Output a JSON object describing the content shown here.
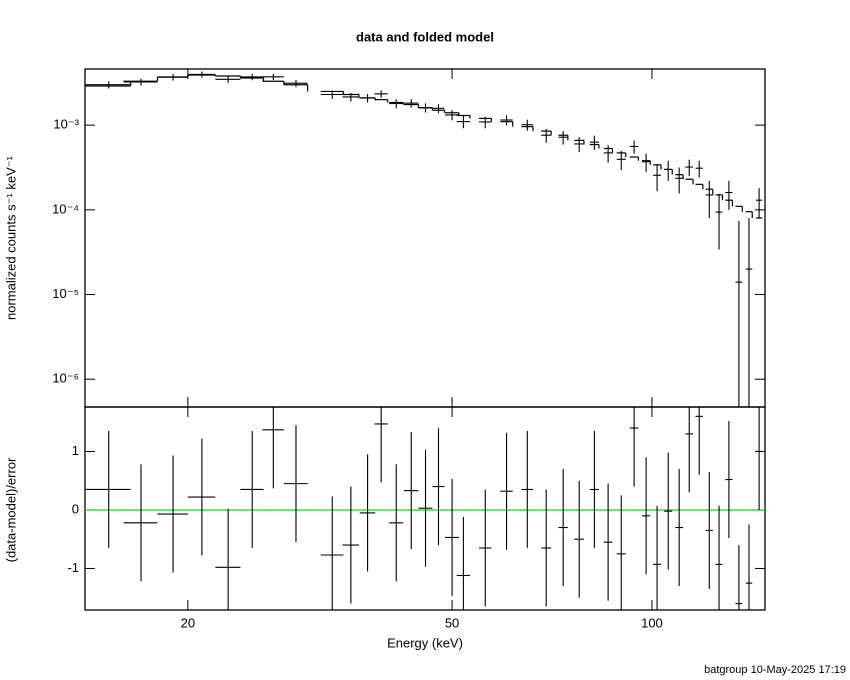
{
  "chart_data": {
    "type": "spectrum",
    "title": "data and folded model",
    "x_label": "Energy (keV)",
    "footer": "batgroup 10-May-2025 17:19",
    "xscale": "log",
    "xlim": [
      14,
      148
    ],
    "xticks": [
      20,
      50,
      100
    ],
    "energy": [
      15.2,
      17.0,
      19.0,
      21.0,
      23.0,
      25.0,
      26.9,
      29.1,
      33.0,
      35.2,
      37.3,
      39.1,
      41.2,
      43.4,
      45.6,
      47.7,
      50.0,
      52.0,
      56.1,
      60.4,
      64.9,
      69.3,
      73.5,
      77.7,
      81.9,
      85.9,
      89.9,
      94.0,
      98.0,
      101.8,
      105.8,
      109.9,
      113.8,
      117.8,
      122.0,
      126.2,
      130.6,
      135.2,
      140.0,
      145.0
    ],
    "energy_err": [
      1.2,
      1.0,
      1.0,
      1.0,
      1.0,
      1.0,
      1.0,
      1.2,
      1.3,
      1.0,
      1.0,
      0.9,
      1.0,
      1.1,
      1.1,
      1.0,
      1.2,
      1.2,
      1.2,
      1.3,
      1.3,
      1.2,
      1.2,
      1.3,
      1.3,
      1.3,
      1.4,
      1.4,
      1.4,
      1.4,
      1.5,
      1.5,
      1.5,
      1.5,
      1.5,
      1.5,
      1.6,
      1.6,
      1.6,
      1.6
    ],
    "panels": [
      {
        "y_label": "normalized counts s⁻¹ keV⁻¹",
        "yscale": "log",
        "ylim": [
          4.7e-07,
          0.0046
        ],
        "yticks": [
          {
            "value": 1e-06,
            "label": "10⁻⁶"
          },
          {
            "value": 1e-05,
            "label": "10⁻⁵"
          },
          {
            "value": 0.0001,
            "label": "10⁻⁴"
          },
          {
            "value": 0.001,
            "label": "10⁻³"
          }
        ],
        "color": "#000000",
        "values": [
          0.003,
          0.00323,
          0.00368,
          0.00397,
          0.00348,
          0.00371,
          0.00372,
          0.00313,
          0.0023,
          0.00215,
          0.00209,
          0.00234,
          0.0018,
          0.00182,
          0.00161,
          0.00158,
          0.00132,
          0.0011,
          0.00109,
          0.00115,
          0.00101,
          0.00076,
          0.00072,
          0.0006,
          0.00063,
          0.00047,
          0.000395,
          0.00056,
          0.00037,
          0.000256,
          0.0003,
          0.000236,
          0.00032,
          0.00031,
          0.00015,
          9.4e-05,
          0.00016,
          1.4e-05,
          2e-05,
          0.00013
        ],
        "errors": [
          0.00029,
          0.0003,
          0.00032,
          0.00033,
          0.00033,
          0.00032,
          0.00031,
          0.00029,
          0.00026,
          0.00025,
          0.00024,
          0.00023,
          0.00022,
          0.00021,
          0.0002,
          0.00019,
          0.00018,
          0.00018,
          0.00017,
          0.00016,
          0.00015,
          0.00014,
          0.00013,
          0.00012,
          0.00012,
          0.00011,
          0.0001,
          0.0001,
          9e-05,
          9e-05,
          8e-05,
          8e-05,
          7e-05,
          7e-05,
          7e-05,
          6e-05,
          6e-05,
          6e-05,
          6e-05,
          5e-05
        ],
        "model": [
          0.0029,
          0.0033,
          0.0037,
          0.0039,
          0.0038,
          0.0036,
          0.0033,
          0.003,
          0.0025,
          0.0023,
          0.0021,
          0.002,
          0.00185,
          0.00175,
          0.0016,
          0.0015,
          0.0014,
          0.0013,
          0.0012,
          0.0011,
          0.00096,
          0.00085,
          0.00076,
          0.00066,
          0.00059,
          0.00053,
          0.00047,
          0.00042,
          0.00038,
          0.00034,
          0.0003,
          0.00026,
          0.00023,
          0.0002,
          0.000175,
          0.00015,
          0.00013,
          0.00011,
          9.5e-05,
          8e-05
        ]
      },
      {
        "y_label": "(data-model)/error",
        "yscale": "linear",
        "ylim": [
          -1.71,
          1.76
        ],
        "yticks": [
          -1,
          0,
          1
        ],
        "color": "#000000",
        "reference": 0,
        "reference_color": "#22cc22",
        "values": [
          0.35,
          -0.22,
          -0.07,
          0.22,
          -0.98,
          0.35,
          1.37,
          0.45,
          -0.77,
          -0.6,
          -0.05,
          1.47,
          -0.22,
          0.33,
          0.03,
          0.4,
          -0.47,
          -1.12,
          -0.65,
          0.32,
          0.35,
          -0.65,
          -0.3,
          -0.5,
          0.35,
          -0.55,
          -0.75,
          1.4,
          -0.1,
          -0.93,
          -0.02,
          -0.3,
          1.3,
          1.6,
          -0.35,
          -0.93,
          0.52,
          -1.6,
          -1.25,
          1.0
        ],
        "errors": [
          1,
          1,
          1,
          1,
          1,
          1,
          1,
          1,
          1,
          1,
          1,
          1,
          1,
          1,
          1,
          1,
          1,
          1,
          1,
          1,
          1,
          1,
          1,
          1,
          1,
          1,
          1,
          1,
          1,
          1,
          1,
          1,
          1,
          1,
          1,
          1,
          1,
          1,
          1,
          1
        ]
      }
    ]
  }
}
